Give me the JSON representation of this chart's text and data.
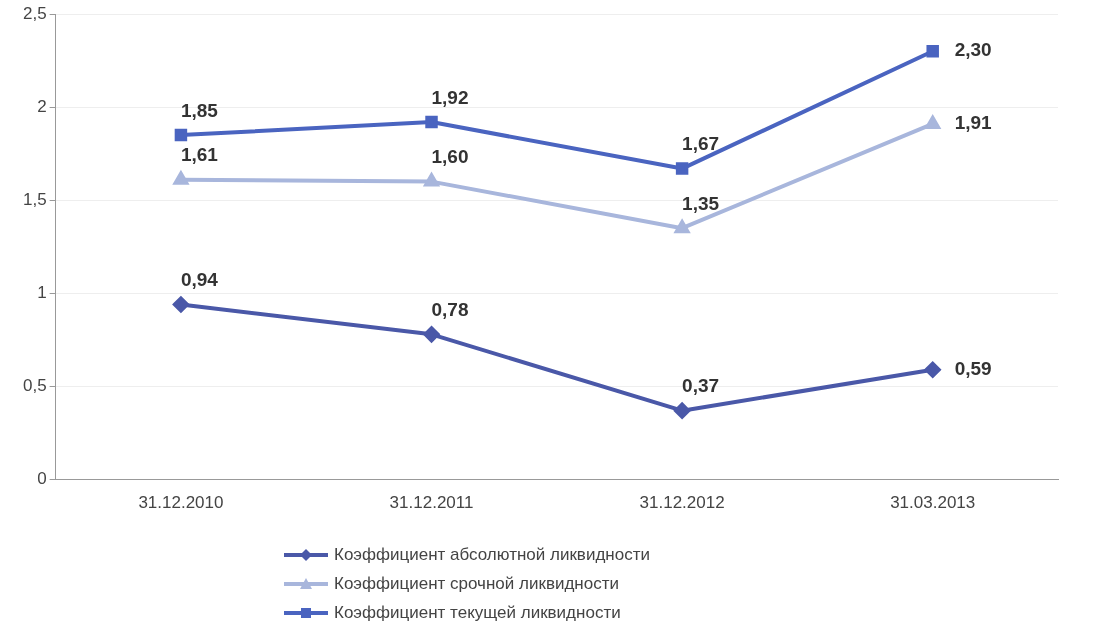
{
  "chart_data": {
    "type": "line",
    "categories": [
      "31.12.2010",
      "31.12.2011",
      "31.12.2012",
      "31.03.2013"
    ],
    "series": [
      {
        "name": "Коэффициент абсолютной ликвидности",
        "color": "#4a58a8",
        "marker": "diamond",
        "values": [
          0.94,
          0.78,
          0.37,
          0.59
        ],
        "value_labels": [
          "0,94",
          "0,78",
          "0,37",
          "0,59"
        ]
      },
      {
        "name": "Коэффициент срочной ликвидности",
        "color": "#a8b6dc",
        "marker": "triangle",
        "values": [
          1.61,
          1.6,
          1.35,
          1.91
        ],
        "value_labels": [
          "1,61",
          "1,60",
          "1,35",
          "1,91"
        ]
      },
      {
        "name": "Коэффициент текущей ликвидности",
        "color": "#4a64c0",
        "marker": "square",
        "values": [
          1.85,
          1.92,
          1.67,
          2.3
        ],
        "value_labels": [
          "1,85",
          "1,92",
          "1,67",
          "2,30"
        ]
      }
    ],
    "ylim": [
      0,
      2.5
    ],
    "yticks": [
      0,
      {
        "value": 0.5,
        "label": "0,5"
      },
      1,
      {
        "value": 1.5,
        "label": "1,5"
      },
      2,
      {
        "value": 2.5,
        "label": "2,5"
      }
    ],
    "grid": "y",
    "legend": "bottom",
    "line_style": "solid"
  }
}
